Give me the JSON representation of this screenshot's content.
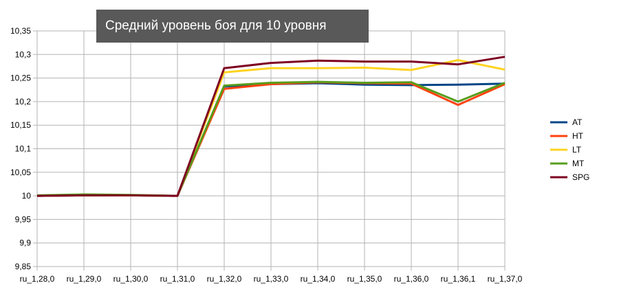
{
  "chart_data": {
    "type": "line",
    "title": "Средний уровень боя для 10 уровня",
    "categories": [
      "ru_1,28,0",
      "ru_1,29,0",
      "ru_1,30,0",
      "ru_1,31,0",
      "ru_1,32,0",
      "ru_1,33,0",
      "ru_1,34,0",
      "ru_1,35,0",
      "ru_1,36,0",
      "ru_1,36,1",
      "ru_1,37,0"
    ],
    "ylim": [
      9.85,
      10.35
    ],
    "yticks": [
      "9,85",
      "9,9",
      "9,95",
      "10",
      "10,05",
      "10,1",
      "10,15",
      "10,2",
      "10,25",
      "10,3",
      "10,35"
    ],
    "ytick_values": [
      9.85,
      9.9,
      9.95,
      10,
      10.05,
      10.1,
      10.15,
      10.2,
      10.25,
      10.3,
      10.35
    ],
    "grid": true,
    "legend_position": "right",
    "series": [
      {
        "name": "AT",
        "color": "#004586",
        "values": [
          10.0,
          10.001,
          10.001,
          10.0,
          10.232,
          10.237,
          10.239,
          10.236,
          10.235,
          10.236,
          10.238
        ]
      },
      {
        "name": "HT",
        "color": "#ff420e",
        "values": [
          10.0,
          10.001,
          10.001,
          10.0,
          10.227,
          10.237,
          10.241,
          10.239,
          10.238,
          10.193,
          10.237
        ]
      },
      {
        "name": "LT",
        "color": "#ffd320",
        "values": [
          10.0,
          10.002,
          10.001,
          10.0,
          10.262,
          10.271,
          10.271,
          10.272,
          10.267,
          10.288,
          10.268
        ]
      },
      {
        "name": "MT",
        "color": "#579d1c",
        "values": [
          10.001,
          10.003,
          10.002,
          10.0,
          10.234,
          10.24,
          10.242,
          10.24,
          10.241,
          10.2,
          10.24
        ]
      },
      {
        "name": "SPG",
        "color": "#7e0021",
        "values": [
          10.0,
          10.001,
          10.001,
          10.0,
          10.271,
          10.282,
          10.287,
          10.285,
          10.285,
          10.279,
          10.295
        ]
      }
    ]
  }
}
